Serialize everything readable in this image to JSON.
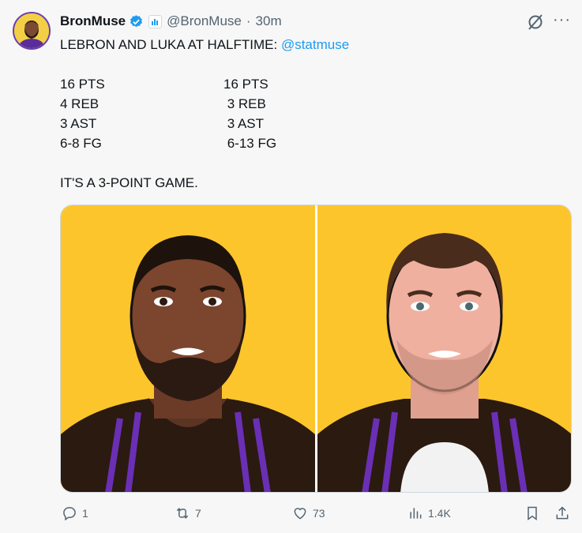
{
  "tweet": {
    "display_name": "BronMuse",
    "handle": "@BronMuse",
    "separator": "·",
    "time": "30m",
    "line1_text": "LEBRON AND LUKA AT HALFTIME: ",
    "mention": "@statmuse",
    "stats_left": [
      "16 PTS",
      "4 REB",
      "3 AST",
      "6-8 FG"
    ],
    "stats_right": [
      "16 PTS",
      " 3 REB",
      " 3 AST",
      " 6-13 FG"
    ],
    "closing": "IT'S A 3-POINT GAME.",
    "colors": {
      "background": "#f7f7f7",
      "link": "#1d9bf0",
      "verified": "#1d9bf0",
      "image_bg": "#fdc52c",
      "jersey_trim": "#6a2fb5"
    }
  },
  "actions": {
    "replies": "1",
    "reposts": "7",
    "likes": "73",
    "views": "1.4K"
  }
}
